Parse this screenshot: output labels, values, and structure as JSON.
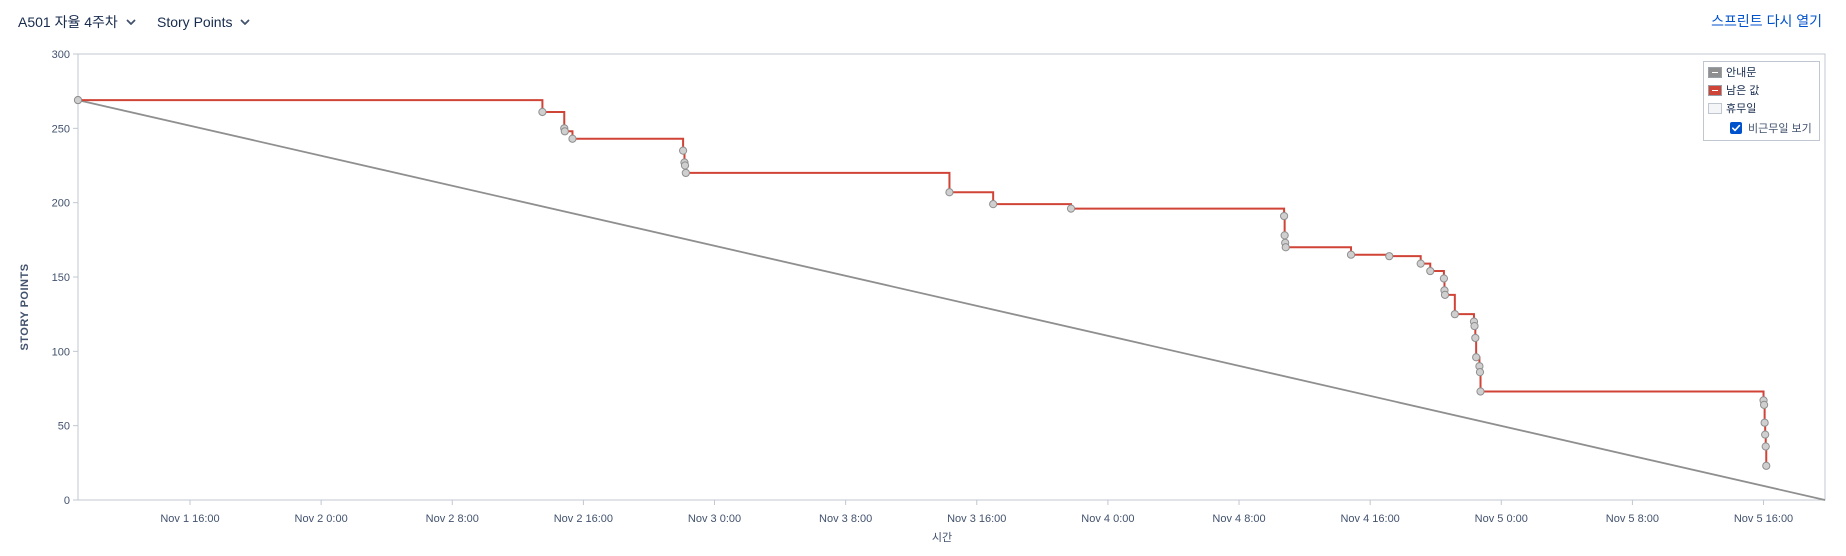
{
  "toolbar": {
    "sprint_label": "A501 자율 4주차",
    "metric_label": "Story Points",
    "reopen_label": "스프린트 다시 열기",
    "dropdown_icon": "chevron-down-icon"
  },
  "legend": {
    "items": [
      {
        "label": "안내문",
        "color": "#8f8f8f"
      },
      {
        "label": "남은 값",
        "color": "#d04437"
      },
      {
        "label": "휴무일",
        "color": "#f4f5f7"
      }
    ],
    "checkbox_label": "비근무일 보기",
    "checkbox_checked": true
  },
  "chart_data": {
    "type": "line",
    "xlabel": "시간",
    "ylabel": "STORY POINTS",
    "ylim": [
      0,
      300
    ],
    "yticks": [
      0,
      50,
      100,
      150,
      200,
      250,
      300
    ],
    "xlim": [
      "2023-11-01 09:10",
      "2023-11-05 19:45"
    ],
    "xticks": [
      {
        "t": "2023-11-01 16:00",
        "label": "Nov 1 16:00"
      },
      {
        "t": "2023-11-02 00:00",
        "label": "Nov 2 0:00"
      },
      {
        "t": "2023-11-02 08:00",
        "label": "Nov 2 8:00"
      },
      {
        "t": "2023-11-02 16:00",
        "label": "Nov 2 16:00"
      },
      {
        "t": "2023-11-03 00:00",
        "label": "Nov 3 0:00"
      },
      {
        "t": "2023-11-03 08:00",
        "label": "Nov 3 8:00"
      },
      {
        "t": "2023-11-03 16:00",
        "label": "Nov 3 16:00"
      },
      {
        "t": "2023-11-04 00:00",
        "label": "Nov 4 0:00"
      },
      {
        "t": "2023-11-04 08:00",
        "label": "Nov 4 8:00"
      },
      {
        "t": "2023-11-04 16:00",
        "label": "Nov 4 16:00"
      },
      {
        "t": "2023-11-05 00:00",
        "label": "Nov 5 0:00"
      },
      {
        "t": "2023-11-05 08:00",
        "label": "Nov 5 8:00"
      },
      {
        "t": "2023-11-05 16:00",
        "label": "Nov 5 16:00"
      }
    ],
    "grid": false,
    "legend_position": "top-right",
    "series": [
      {
        "name": "안내문",
        "color": "#8f8f8f",
        "step": false,
        "markers": false,
        "points": [
          {
            "t": "2023-11-01 09:10",
            "y": 269
          },
          {
            "t": "2023-11-05 19:45",
            "y": 0
          }
        ]
      },
      {
        "name": "남은 값",
        "color": "#d04437",
        "step": true,
        "markers": true,
        "points": [
          {
            "t": "2023-11-01 09:10",
            "y": 269
          },
          {
            "t": "2023-11-02 13:30",
            "y": 261
          },
          {
            "t": "2023-11-02 14:50",
            "y": 250
          },
          {
            "t": "2023-11-02 14:52",
            "y": 248
          },
          {
            "t": "2023-11-02 15:20",
            "y": 243
          },
          {
            "t": "2023-11-02 22:05",
            "y": 235
          },
          {
            "t": "2023-11-02 22:10",
            "y": 227
          },
          {
            "t": "2023-11-02 22:12",
            "y": 225
          },
          {
            "t": "2023-11-02 22:15",
            "y": 220
          },
          {
            "t": "2023-11-03 14:20",
            "y": 207
          },
          {
            "t": "2023-11-03 17:00",
            "y": 199
          },
          {
            "t": "2023-11-03 21:45",
            "y": 196
          },
          {
            "t": "2023-11-04 10:45",
            "y": 191
          },
          {
            "t": "2023-11-04 10:47",
            "y": 178
          },
          {
            "t": "2023-11-04 10:49",
            "y": 173
          },
          {
            "t": "2023-11-04 10:51",
            "y": 170
          },
          {
            "t": "2023-11-04 14:50",
            "y": 165
          },
          {
            "t": "2023-11-04 17:10",
            "y": 164
          },
          {
            "t": "2023-11-04 19:05",
            "y": 159
          },
          {
            "t": "2023-11-04 19:40",
            "y": 154
          },
          {
            "t": "2023-11-04 20:30",
            "y": 149
          },
          {
            "t": "2023-11-04 20:32",
            "y": 141
          },
          {
            "t": "2023-11-04 20:34",
            "y": 138
          },
          {
            "t": "2023-11-04 21:10",
            "y": 125
          },
          {
            "t": "2023-11-04 22:20",
            "y": 120
          },
          {
            "t": "2023-11-04 22:22",
            "y": 117
          },
          {
            "t": "2023-11-04 22:25",
            "y": 109
          },
          {
            "t": "2023-11-04 22:28",
            "y": 96
          },
          {
            "t": "2023-11-04 22:40",
            "y": 90
          },
          {
            "t": "2023-11-04 22:42",
            "y": 86
          },
          {
            "t": "2023-11-04 22:44",
            "y": 73
          },
          {
            "t": "2023-11-05 16:00",
            "y": 67
          },
          {
            "t": "2023-11-05 16:02",
            "y": 64
          },
          {
            "t": "2023-11-05 16:04",
            "y": 52
          },
          {
            "t": "2023-11-05 16:06",
            "y": 44
          },
          {
            "t": "2023-11-05 16:08",
            "y": 36
          },
          {
            "t": "2023-11-05 16:10",
            "y": 23
          }
        ]
      }
    ]
  }
}
